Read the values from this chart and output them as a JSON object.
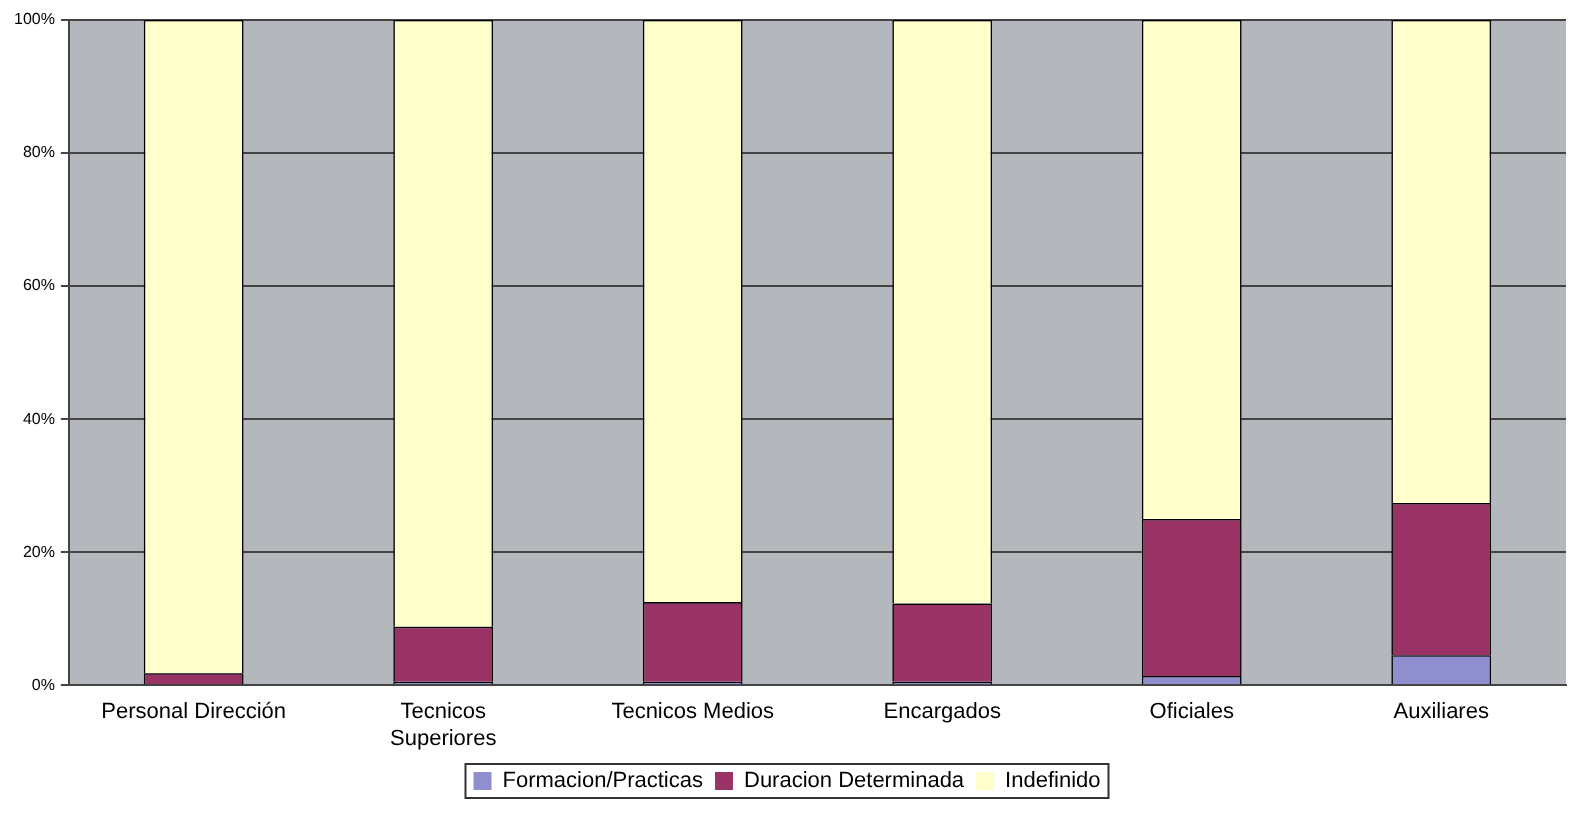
{
  "chart_data": {
    "type": "bar",
    "stacked": true,
    "categories": [
      "Personal Dirección",
      "Tecnicos\nSuperiores",
      "Tecnicos Medios",
      "Encargados",
      "Oficiales",
      "Auxiliares"
    ],
    "series": [
      {
        "name": "Formacion/Practicas",
        "color": "#8f8fd0",
        "values": [
          0,
          0.5,
          0.5,
          0.5,
          1.4,
          4.5
        ]
      },
      {
        "name": "Duracion Determinada",
        "color": "#993366",
        "values": [
          1.8,
          8.3,
          12,
          11.8,
          23.6,
          22.9
        ]
      },
      {
        "name": "Indefinido",
        "color": "#ffffcc",
        "values": [
          98.2,
          91.2,
          87.5,
          87.7,
          75,
          72.6
        ]
      }
    ],
    "ylim": [
      0,
      100
    ],
    "yticks": [
      {
        "value": 0,
        "label": "0%"
      },
      {
        "value": 20,
        "label": "20%"
      },
      {
        "value": 40,
        "label": "40%"
      },
      {
        "value": 60,
        "label": "60%"
      },
      {
        "value": 80,
        "label": "80%"
      },
      {
        "value": 100,
        "label": "100%"
      }
    ],
    "grid": "y",
    "legend": "bottom"
  }
}
